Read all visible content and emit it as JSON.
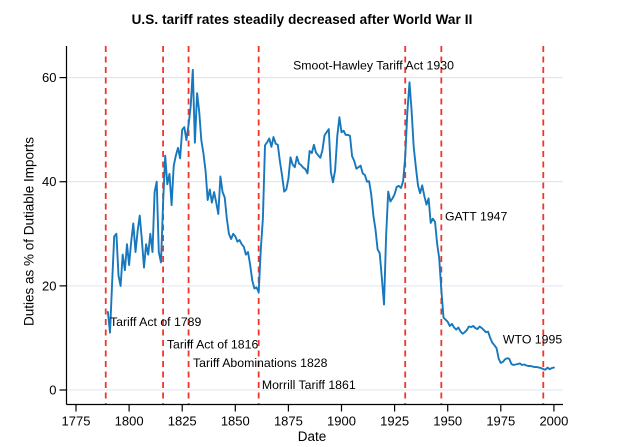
{
  "title": "U.S. tariff rates steadily decreased after World War II",
  "chart_data": {
    "type": "line",
    "title": "U.S. tariff rates steadily decreased after World War II",
    "xlabel": "Date",
    "ylabel": "Duties as % of Dutiable Imports",
    "x_ticks": [
      1775,
      1800,
      1825,
      1850,
      1875,
      1900,
      1925,
      1950,
      1975,
      2000
    ],
    "y_ticks": [
      0,
      20,
      40,
      60
    ],
    "xlim": [
      1775,
      2000
    ],
    "ylim": [
      0,
      62
    ],
    "grid": "horizontal-only",
    "legend": "none",
    "line_color": "#1778bd",
    "event_line_color": "#f0352b",
    "event_line_style": "dashed",
    "event_years": [
      1789,
      1816,
      1828,
      1861,
      1930,
      1947,
      1995
    ],
    "annotations": [
      {
        "label": "Tariff Act of 1789",
        "year": 1791.0,
        "value": 12.9
      },
      {
        "label": "Tariff Act of 1816",
        "year": 1817.8,
        "value": 8.6
      },
      {
        "label": "Tariff Abominations 1828",
        "year": 1830.1,
        "value": 5.0
      },
      {
        "label": "Morrill Tariff 1861",
        "year": 1862.5,
        "value": 0.8
      },
      {
        "label": "Smoot-Hawley Tariff Act 1930",
        "year": 1877.2,
        "value": 62.2
      },
      {
        "label": "GATT 1947",
        "year": 1948.7,
        "value": 33.2
      },
      {
        "label": "WTO 1995",
        "year": 1976.0,
        "value": 9.6
      }
    ],
    "series_start_year": 1790,
    "series_end_year": 2000,
    "series_values_pct_per_year": [
      15.0,
      11.0,
      20.5,
      29.5,
      30.0,
      22.0,
      20.0,
      26.0,
      23.0,
      28.0,
      24.0,
      28.5,
      32.0,
      26.5,
      30.5,
      33.5,
      29.0,
      23.5,
      28.0,
      26.0,
      30.0,
      26.5,
      38.0,
      40.0,
      26.5,
      24.5,
      36.0,
      45.0,
      39.5,
      41.5,
      35.5,
      43.0,
      45.0,
      46.5,
      44.5,
      50.0,
      50.5,
      48.0,
      51.0,
      54.5,
      61.5,
      47.5,
      57.0,
      53.5,
      48.0,
      45.5,
      42.0,
      36.5,
      38.5,
      36.0,
      38.0,
      36.0,
      33.8,
      41.0,
      38.0,
      37.0,
      33.0,
      30.0,
      29.0,
      30.0,
      29.5,
      28.5,
      28.8,
      28.0,
      27.5,
      26.0,
      26.5,
      24.0,
      21.0,
      19.5,
      19.7,
      18.8,
      27.0,
      33.0,
      47.0,
      47.6,
      48.3,
      46.7,
      48.6,
      47.3,
      47.1,
      43.9,
      41.3,
      38.1,
      38.5,
      40.6,
      44.7,
      43.3,
      42.8,
      44.8,
      43.5,
      43.2,
      42.7,
      42.4,
      41.6,
      45.9,
      45.5,
      47.1,
      45.6,
      45.1,
      44.6,
      46.0,
      48.9,
      49.5,
      50.1,
      41.8,
      39.9,
      42.2,
      48.8,
      52.4,
      49.5,
      49.8,
      49.0,
      49.0,
      48.8,
      44.9,
      44.0,
      42.5,
      42.8,
      43.1,
      41.6,
      41.3,
      40.0,
      40.1,
      37.6,
      33.5,
      30.8,
      27.0,
      26.3,
      21.4,
      16.4,
      29.5,
      38.1,
      36.2,
      36.8,
      37.6,
      39.0,
      39.2,
      38.8,
      40.1,
      44.7,
      53.2,
      59.1,
      53.6,
      46.7,
      42.9,
      39.3,
      37.8,
      39.3,
      37.3,
      35.6,
      36.8,
      32.1,
      32.9,
      32.3,
      28.2,
      25.3,
      19.3,
      13.9,
      13.5,
      13.1,
      12.3,
      12.7,
      12.0,
      11.6,
      12.0,
      11.3,
      10.8,
      11.1,
      11.5,
      12.2,
      12.1,
      12.3,
      11.9,
      11.7,
      12.2,
      11.9,
      11.5,
      11.1,
      11.2,
      10.0,
      9.1,
      8.6,
      8.0,
      6.0,
      5.2,
      5.4,
      5.9,
      6.1,
      6.0,
      5.0,
      4.8,
      4.9,
      5.0,
      5.1,
      4.8,
      4.9,
      4.7,
      4.6,
      4.6,
      4.5,
      4.4,
      4.4,
      4.3,
      4.2,
      4.0,
      3.9,
      4.3,
      4.0,
      4.2,
      4.3
    ]
  }
}
